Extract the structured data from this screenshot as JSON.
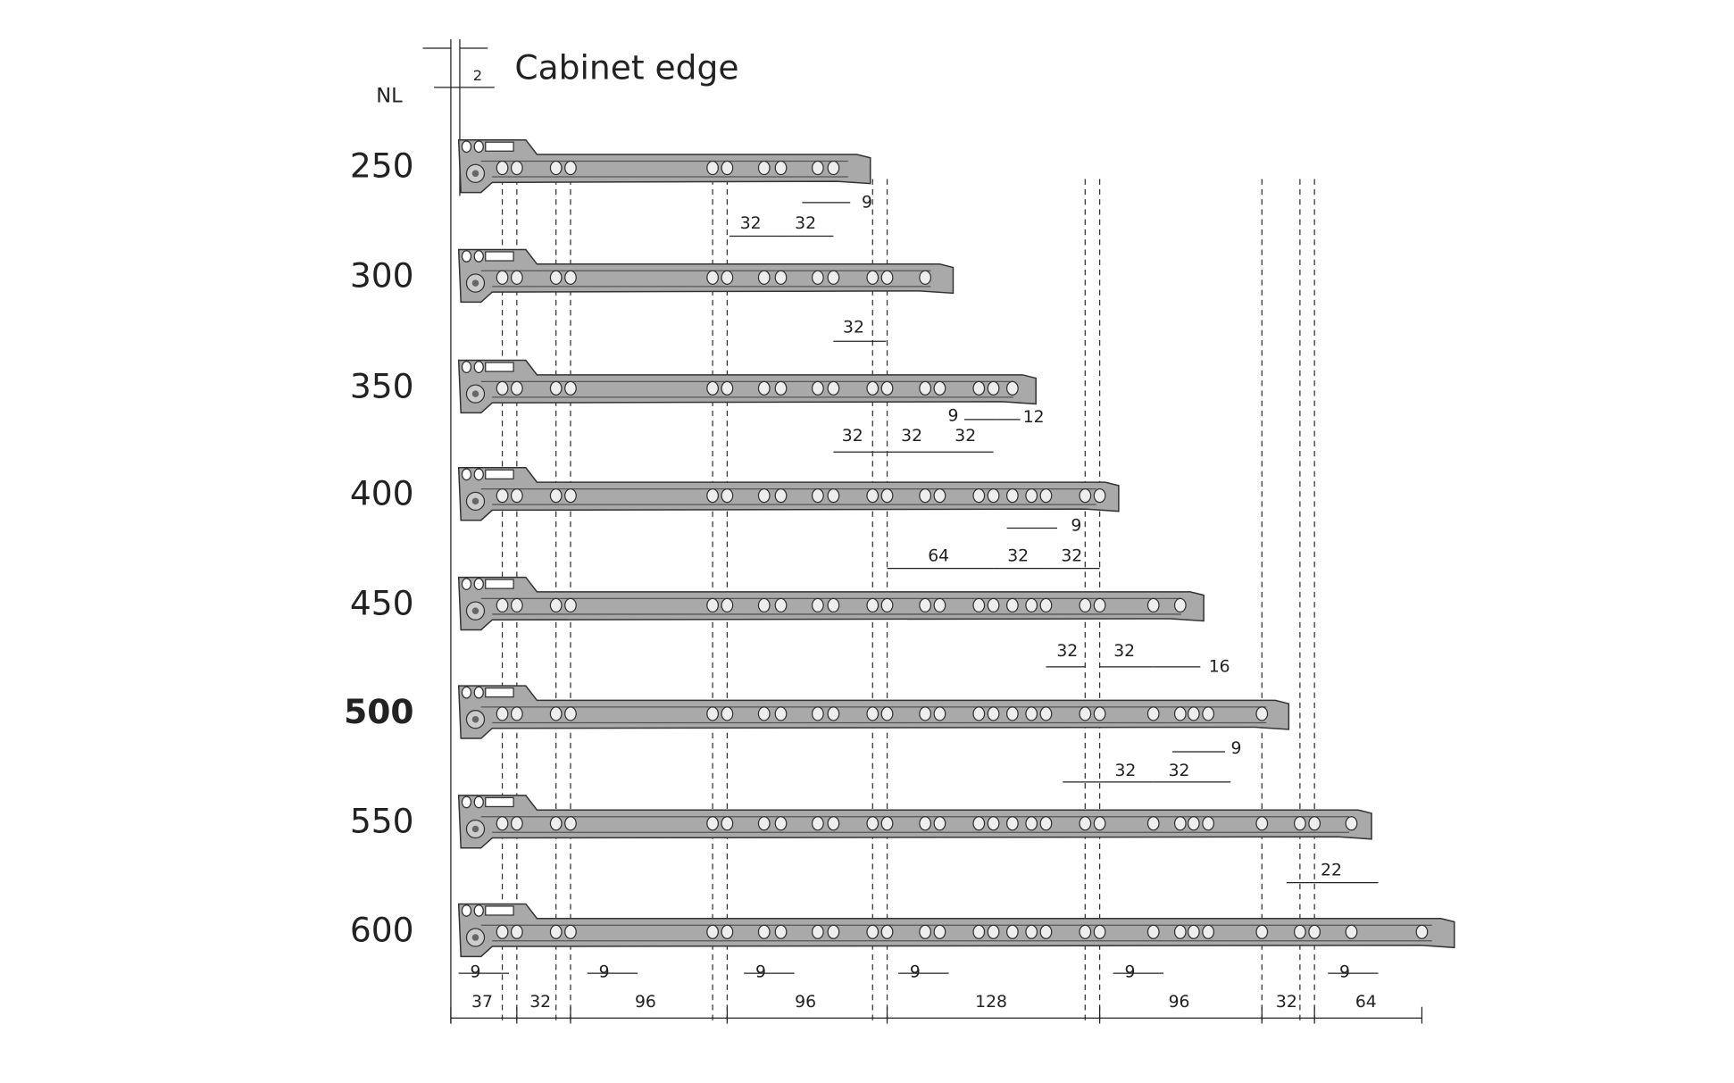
{
  "header": {
    "nl_label": "NL",
    "edge_offset": "2",
    "cabinet_edge": "Cabinet edge"
  },
  "rails": [
    {
      "length": "250",
      "dimensions": [
        "32",
        "32",
        "9"
      ]
    },
    {
      "length": "300",
      "dimensions": [
        "32"
      ]
    },
    {
      "length": "350",
      "dimensions": [
        "9",
        "12",
        "32",
        "32",
        "32"
      ]
    },
    {
      "length": "400",
      "dimensions": [
        "9",
        "64",
        "32",
        "32"
      ]
    },
    {
      "length": "450",
      "dimensions": [
        "32",
        "32",
        "16"
      ]
    },
    {
      "length": "500",
      "dimensions": [
        "9",
        "32",
        "32"
      ]
    },
    {
      "length": "550",
      "dimensions": [
        "22"
      ]
    },
    {
      "length": "600",
      "dimensions": []
    }
  ],
  "bottom_dimensions": {
    "offsets": [
      "9",
      "9",
      "9",
      "9",
      "9",
      "9"
    ],
    "spacings": [
      "37",
      "32",
      "96",
      "96",
      "128",
      "96",
      "32",
      "64"
    ]
  }
}
